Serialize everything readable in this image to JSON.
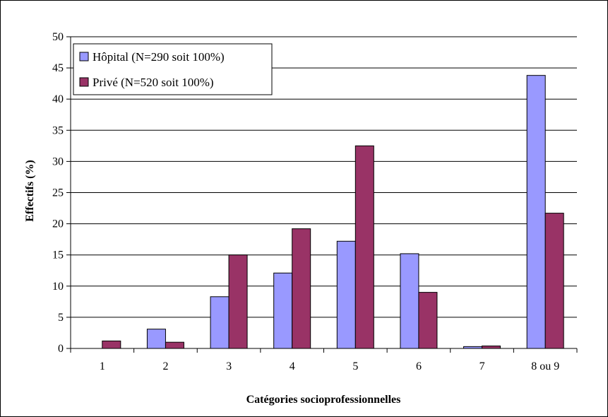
{
  "chart_data": {
    "type": "bar",
    "categories": [
      "1",
      "2",
      "3",
      "4",
      "5",
      "6",
      "7",
      "8 ou 9"
    ],
    "series": [
      {
        "name": "Hôpital (N=290 soit 100%)",
        "color": "#9999ff",
        "values": [
          0,
          3.1,
          8.3,
          12.1,
          17.2,
          15.2,
          0.3,
          43.8
        ]
      },
      {
        "name": "Privé (N=520 soit 100%)",
        "color": "#993366",
        "values": [
          1.2,
          1.0,
          15.0,
          19.2,
          32.5,
          9.0,
          0.4,
          21.7
        ]
      }
    ],
    "xlabel": "Catégories socioprofessionnelles",
    "ylabel": "Effectifs (%)",
    "ylim": [
      0,
      50
    ],
    "yticks": [
      "0",
      "5",
      "10",
      "15",
      "20",
      "25",
      "30",
      "35",
      "40",
      "45",
      "50"
    ],
    "grid": true,
    "legend_position": "top-left"
  }
}
